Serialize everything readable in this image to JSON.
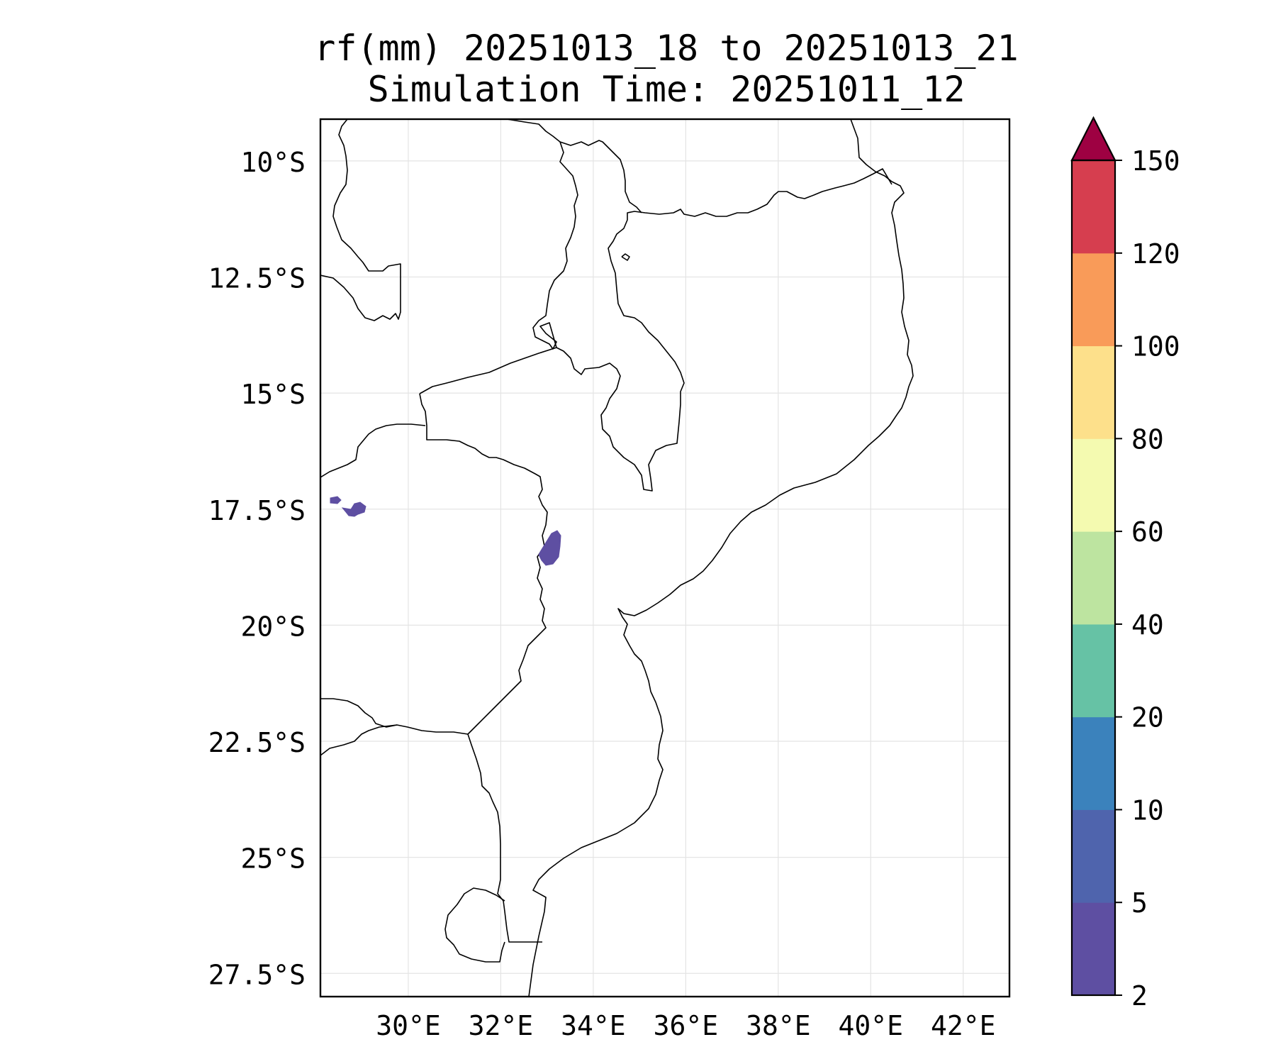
{
  "title_line1": "rf(mm) 20251013_18 to 20251013_21",
  "title_line2": "Simulation Time: 20251011_12",
  "map": {
    "lon_range": [
      28.1,
      43.0
    ],
    "lat_range": [
      -28.0,
      -9.1
    ],
    "lat_ticks": [
      {
        "value": -10,
        "label": "10°S"
      },
      {
        "value": -12.5,
        "label": "12.5°S"
      },
      {
        "value": -15,
        "label": "15°S"
      },
      {
        "value": -17.5,
        "label": "17.5°S"
      },
      {
        "value": -20,
        "label": "20°S"
      },
      {
        "value": -22.5,
        "label": "22.5°S"
      },
      {
        "value": -25,
        "label": "25°S"
      },
      {
        "value": -27.5,
        "label": "27.5°S"
      }
    ],
    "lon_ticks": [
      {
        "value": 30,
        "label": "30°E"
      },
      {
        "value": 32,
        "label": "32°E"
      },
      {
        "value": 34,
        "label": "34°E"
      },
      {
        "value": 36,
        "label": "36°E"
      },
      {
        "value": 38,
        "label": "38°E"
      },
      {
        "value": 40,
        "label": "40°E"
      },
      {
        "value": 42,
        "label": "42°E"
      }
    ],
    "gridlines": true,
    "rain_patches": [
      {
        "name": "western-zimbabwe-small",
        "lon": 28.35,
        "lat": -17.3,
        "class": "2-5"
      },
      {
        "name": "western-zimbabwe-cluster",
        "lon": 28.9,
        "lat": -17.5,
        "class": "2-5"
      },
      {
        "name": "manica-border",
        "lon": 33.05,
        "lat": -18.35,
        "class": "2-5"
      }
    ]
  },
  "colorbar": {
    "labels": [
      "2",
      "5",
      "10",
      "20",
      "40",
      "60",
      "80",
      "100",
      "120",
      "150"
    ],
    "colors": [
      "#5e4fa2",
      "#4f64ad",
      "#3b82bc",
      "#66c2a5",
      "#bde4a0",
      "#f4fab0",
      "#fde08b",
      "#f99b59",
      "#d63e4f"
    ],
    "extend_color": "#9e0142",
    "extend": "max"
  }
}
